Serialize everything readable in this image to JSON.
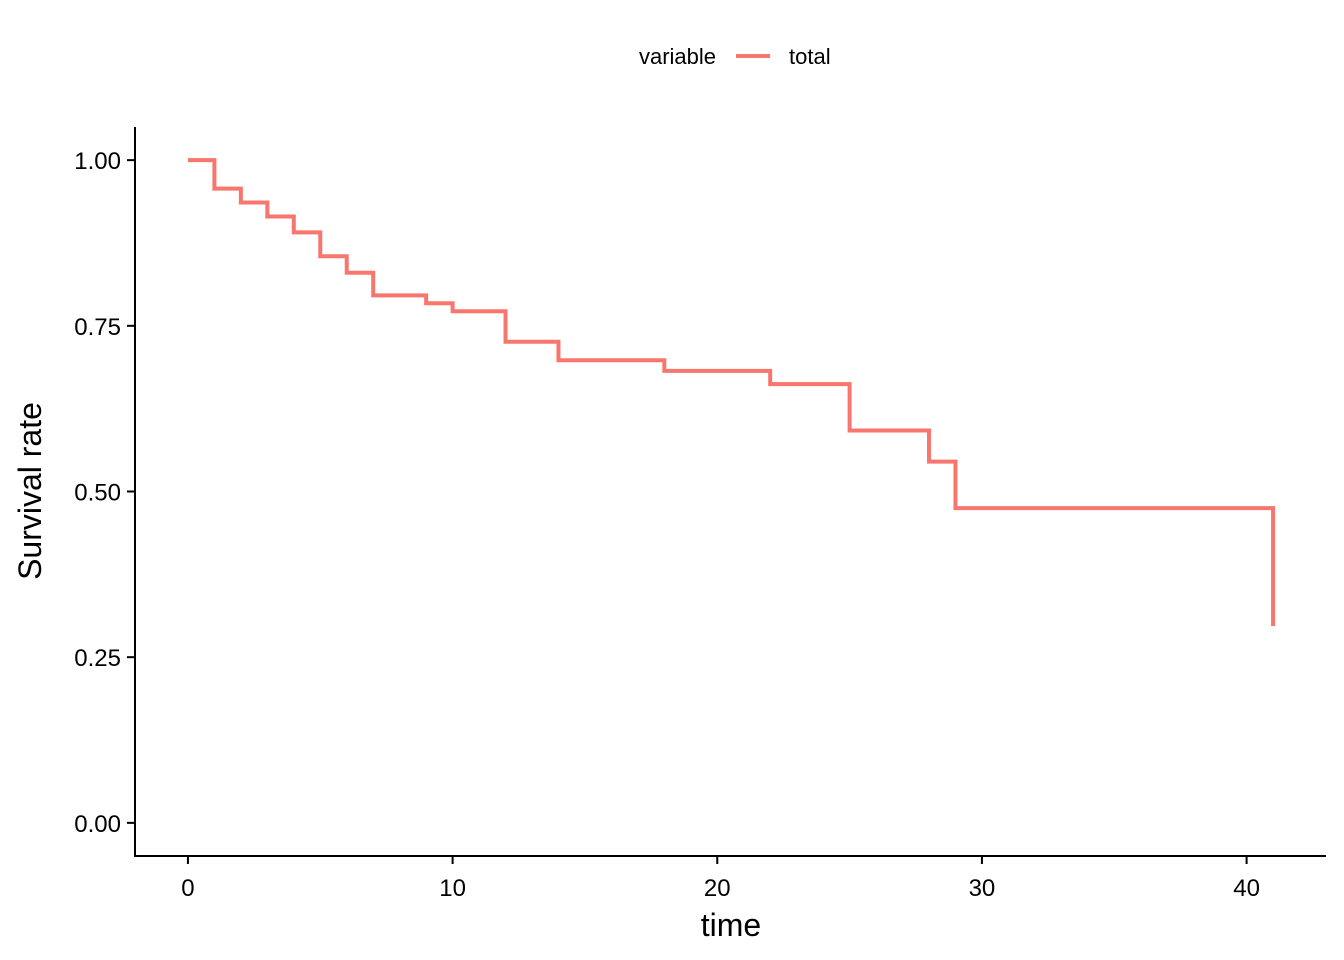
{
  "chart_data": {
    "type": "line",
    "step": true,
    "title": "",
    "xlabel": "time",
    "ylabel": "Survival rate",
    "xlim": [
      -2,
      43
    ],
    "ylim": [
      -0.05,
      1.05
    ],
    "xticks": [
      0,
      10,
      20,
      30,
      40
    ],
    "xtick_labels": [
      "0",
      "10",
      "20",
      "30",
      "40"
    ],
    "yticks": [
      0,
      0.25,
      0.5,
      0.75,
      1.0
    ],
    "ytick_labels": [
      "0.00",
      "0.25",
      "0.50",
      "0.75",
      "1.00"
    ],
    "grid": false,
    "legend": {
      "title": "variable",
      "position": "top"
    },
    "series": [
      {
        "name": "total",
        "color": "#F8766D",
        "x": [
          0,
          1,
          2,
          3,
          4,
          5,
          6,
          7,
          9,
          10,
          12,
          14,
          18,
          22,
          25,
          28,
          29,
          41
        ],
        "y": [
          1.0,
          0.957,
          0.936,
          0.915,
          0.891,
          0.855,
          0.83,
          0.796,
          0.784,
          0.772,
          0.726,
          0.698,
          0.682,
          0.662,
          0.592,
          0.545,
          0.475,
          0.297
        ]
      }
    ]
  }
}
